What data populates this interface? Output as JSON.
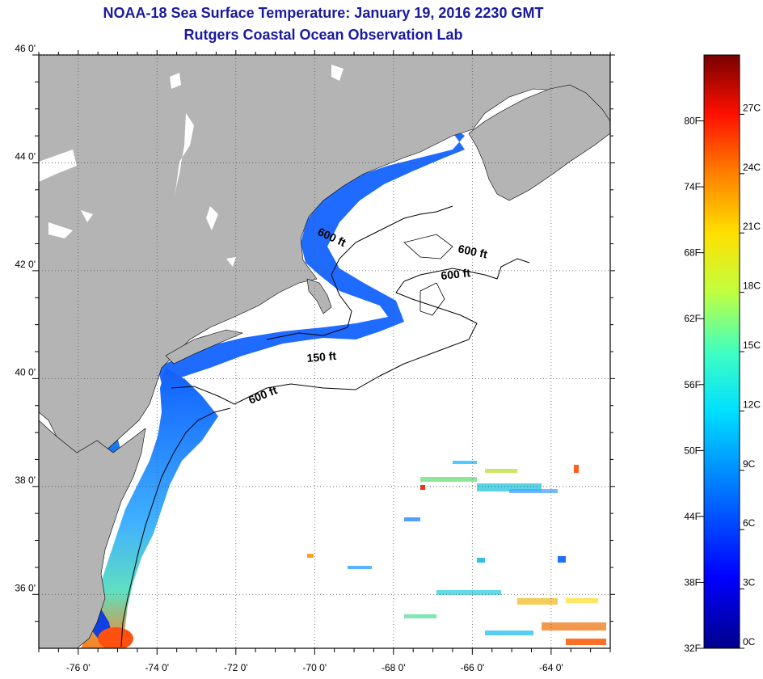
{
  "title": "NOAA-18 Sea Surface Temperature:  January 19, 2016 2230 GMT",
  "subtitle": "Rutgers Coastal Ocean Observation Lab",
  "axes": {
    "lat_labels": [
      "46 0'",
      "44 0'",
      "42 0'",
      "40 0'",
      "38 0'",
      "36 0'"
    ],
    "lat_values": [
      46,
      44,
      42,
      40,
      38,
      36
    ],
    "lon_labels": [
      "-76 0'",
      "-74 0'",
      "-72 0'",
      "-70 0'",
      "-68 0'",
      "-66 0'",
      "-64 0'"
    ],
    "lon_values": [
      -76,
      -74,
      -72,
      -70,
      -68,
      -66,
      -64
    ],
    "lon_range": [
      -77,
      -62.5
    ],
    "lat_range": [
      35,
      46
    ],
    "grid": "dotted"
  },
  "contours": [
    {
      "label": "600 ft"
    },
    {
      "label": "600 ft"
    },
    {
      "label": "600 ft"
    },
    {
      "label": "150 ft"
    },
    {
      "label": "600 ft"
    }
  ],
  "colorbar": {
    "fahrenheit": [
      "80F",
      "74F",
      "68F",
      "62F",
      "56F",
      "50F",
      "44F",
      "38F",
      "32F"
    ],
    "celsius": [
      "27C",
      "24C",
      "21C",
      "18C",
      "15C",
      "12C",
      "9C",
      "6C",
      "3C",
      "0C"
    ],
    "range_c": [
      0,
      30
    ]
  },
  "colors": {
    "land": "#b4b4b4",
    "title": "#1a1aa0",
    "background": "#ffffff"
  }
}
